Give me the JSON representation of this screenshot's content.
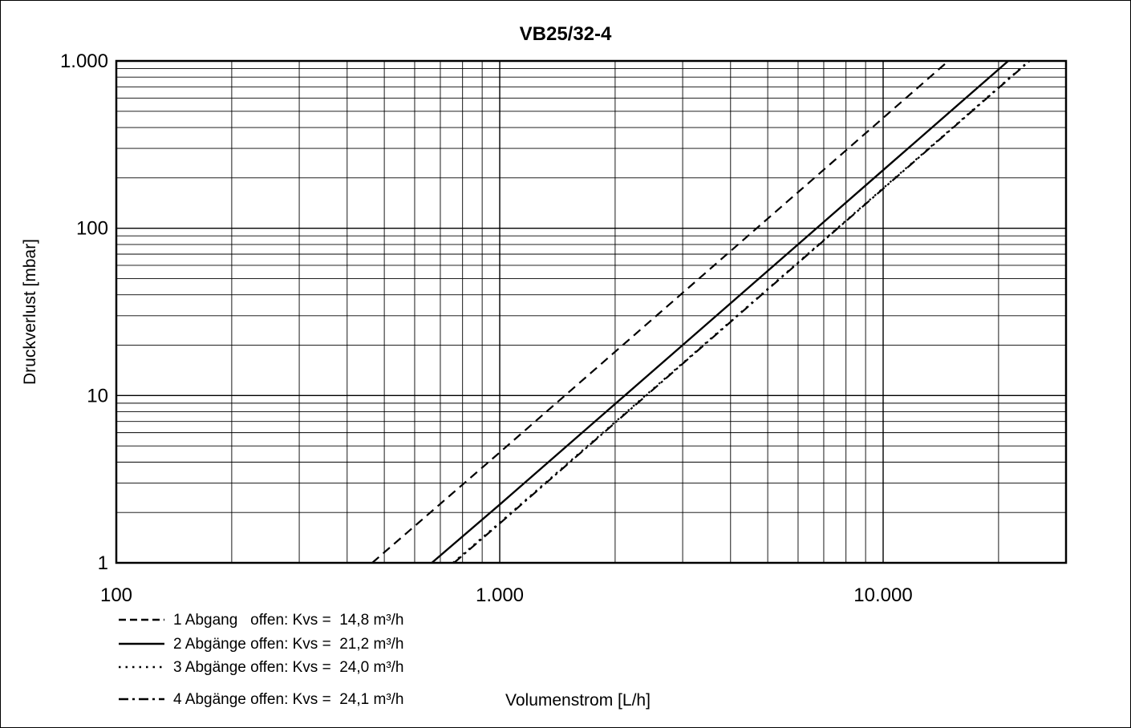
{
  "chart_data": {
    "type": "line",
    "title": "VB25/32-4",
    "xlabel": "Volumenstrom  [L/h]",
    "ylabel": "Druckverlust  [mbar]",
    "x_scale": "log",
    "y_scale": "log",
    "xlim": [
      100,
      30000
    ],
    "ylim": [
      1,
      1000
    ],
    "x_ticks": [
      {
        "value": 100,
        "label": "100"
      },
      {
        "value": 1000,
        "label": "1.000"
      },
      {
        "value": 10000,
        "label": "10.000"
      }
    ],
    "y_ticks": [
      {
        "value": 1,
        "label": "1"
      },
      {
        "value": 10,
        "label": "10"
      },
      {
        "value": 100,
        "label": "100"
      },
      {
        "value": 1000,
        "label": "1.000"
      }
    ],
    "grid": true,
    "legend_position": "bottom-left",
    "series": [
      {
        "name": "1 Abgang   offen: Kvs =  14,8 m³/h",
        "kvs": 14.8,
        "dash": "dashed",
        "x": [
          465,
          1000,
          5000,
          10000,
          14800
        ],
        "y": [
          1,
          4.57,
          114.1,
          456.5,
          1000
        ]
      },
      {
        "name": "2 Abgänge offen: Kvs =  21,2 m³/h",
        "kvs": 21.2,
        "dash": "solid",
        "x": [
          665,
          1000,
          5000,
          10000,
          21200
        ],
        "y": [
          1,
          2.23,
          55.6,
          222.5,
          1000
        ]
      },
      {
        "name": "3 Abgänge offen: Kvs =  24,0 m³/h",
        "kvs": 24.0,
        "dash": "dotted",
        "x": [
          755,
          1000,
          5000,
          10000,
          24000
        ],
        "y": [
          1,
          1.74,
          43.4,
          173.6,
          1000
        ]
      },
      {
        "name": "4 Abgänge offen: Kvs =  24,1 m³/h",
        "kvs": 24.1,
        "dash": "dashdot",
        "x": [
          760,
          1000,
          5000,
          10000,
          24100
        ],
        "y": [
          1,
          1.72,
          43.0,
          172.2,
          1000
        ]
      }
    ]
  }
}
